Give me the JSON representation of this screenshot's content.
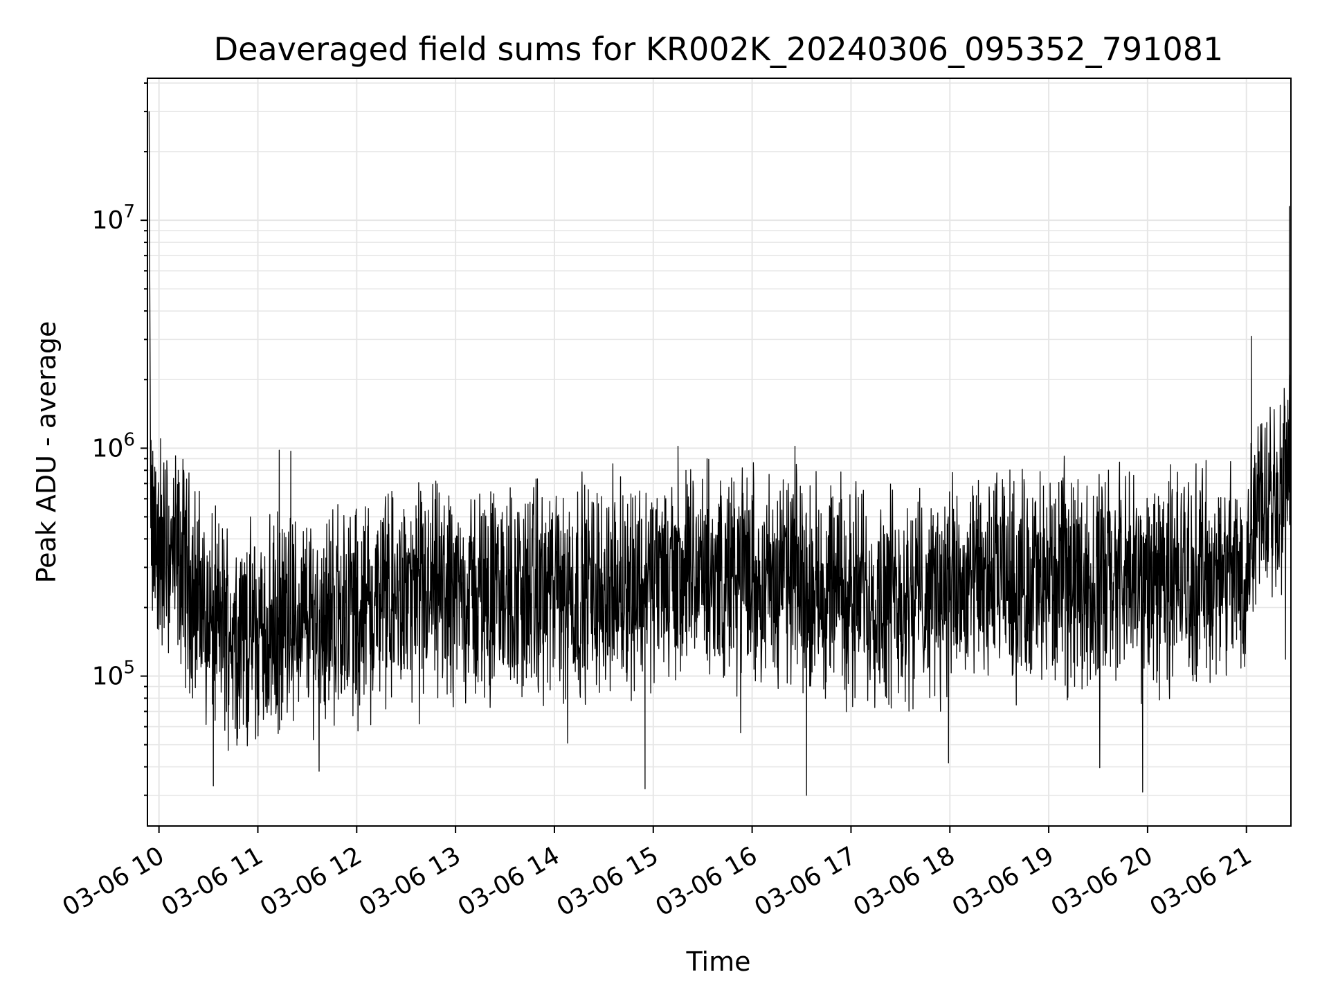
{
  "chart_data": {
    "type": "line",
    "title": "Deaveraged field sums for KR002K_20240306_095352_791081",
    "xlabel": "Time",
    "ylabel": "Peak ADU - average",
    "x_start": "2024-03-06T09:53:52",
    "x_end": "2024-03-06T21:27:00",
    "xlim": [
      "2024-03-06T09:53:00",
      "2024-03-06T21:27:00"
    ],
    "ylim": [
      22000,
      42000000
    ],
    "y_scale": "log",
    "grid": true,
    "line_color": "#000000",
    "grid_color": "#e6e6e6",
    "xtick_values": [
      "2024-03-06T10:00:00",
      "2024-03-06T11:00:00",
      "2024-03-06T12:00:00",
      "2024-03-06T13:00:00",
      "2024-03-06T14:00:00",
      "2024-03-06T15:00:00",
      "2024-03-06T16:00:00",
      "2024-03-06T17:00:00",
      "2024-03-06T18:00:00",
      "2024-03-06T19:00:00",
      "2024-03-06T20:00:00",
      "2024-03-06T21:00:00"
    ],
    "xtick_labels": [
      "03-06 10",
      "03-06 11",
      "03-06 12",
      "03-06 13",
      "03-06 14",
      "03-06 15",
      "03-06 16",
      "03-06 17",
      "03-06 18",
      "03-06 19",
      "03-06 20",
      "03-06 21"
    ],
    "ytick_values": [
      100000,
      1000000,
      10000000
    ],
    "ytick_labels": [
      {
        "base": "10",
        "exp": "5"
      },
      {
        "base": "10",
        "exp": "6"
      },
      {
        "base": "10",
        "exp": "7"
      }
    ],
    "series": [
      {
        "values_note": "",
        "envelope": [
          {
            "t": "2024-03-06T09:53:52",
            "y": 30000000
          },
          {
            "t": "2024-03-06T09:55:00",
            "y": 400000
          },
          {
            "t": "2024-03-06T10:00:00",
            "y": 350000
          },
          {
            "t": "2024-03-06T10:15:00",
            "y": 300000
          },
          {
            "t": "2024-03-06T10:30:00",
            "y": 180000
          },
          {
            "t": "2024-03-06T10:45:00",
            "y": 160000
          },
          {
            "t": "2024-03-06T11:00:00",
            "y": 150000
          },
          {
            "t": "2024-03-06T11:15:00",
            "y": 170000
          },
          {
            "t": "2024-03-06T11:30:00",
            "y": 180000
          },
          {
            "t": "2024-03-06T11:45:00",
            "y": 190000
          },
          {
            "t": "2024-03-06T12:00:00",
            "y": 200000
          },
          {
            "t": "2024-03-06T12:30:00",
            "y": 220000
          },
          {
            "t": "2024-03-06T13:00:00",
            "y": 230000
          },
          {
            "t": "2024-03-06T13:30:00",
            "y": 230000
          },
          {
            "t": "2024-03-06T14:00:00",
            "y": 230000
          },
          {
            "t": "2024-03-06T14:30:00",
            "y": 250000
          },
          {
            "t": "2024-03-06T15:00:00",
            "y": 270000
          },
          {
            "t": "2024-03-06T15:30:00",
            "y": 280000
          },
          {
            "t": "2024-03-06T16:00:00",
            "y": 280000
          },
          {
            "t": "2024-03-06T16:30:00",
            "y": 260000
          },
          {
            "t": "2024-03-06T17:00:00",
            "y": 240000
          },
          {
            "t": "2024-03-06T17:30:00",
            "y": 230000
          },
          {
            "t": "2024-03-06T18:00:00",
            "y": 240000
          },
          {
            "t": "2024-03-06T18:30:00",
            "y": 260000
          },
          {
            "t": "2024-03-06T19:00:00",
            "y": 270000
          },
          {
            "t": "2024-03-06T19:30:00",
            "y": 270000
          },
          {
            "t": "2024-03-06T20:00:00",
            "y": 270000
          },
          {
            "t": "2024-03-06T20:30:00",
            "y": 280000
          },
          {
            "t": "2024-03-06T21:00:00",
            "y": 280000
          },
          {
            "t": "2024-03-06T21:05:00",
            "y": 650000
          },
          {
            "t": "2024-03-06T21:27:00",
            "y": 700000
          }
        ],
        "spikes": [
          {
            "t": "2024-03-06T09:54:00",
            "y": 30000000
          },
          {
            "t": "2024-03-06T10:01:00",
            "y": 1100000
          },
          {
            "t": "2024-03-06T10:15:00",
            "y": 800000
          },
          {
            "t": "2024-03-06T11:13:00",
            "y": 980000
          },
          {
            "t": "2024-03-06T11:20:00",
            "y": 970000
          },
          {
            "t": "2024-03-06T15:15:00",
            "y": 1020000
          },
          {
            "t": "2024-03-06T16:26:00",
            "y": 1020000
          },
          {
            "t": "2024-03-06T21:03:00",
            "y": 3100000
          },
          {
            "t": "2024-03-06T21:26:00",
            "y": 11500000
          },
          {
            "t": "2024-03-06T10:33:00",
            "y": 33000
          },
          {
            "t": "2024-03-06T16:33:00",
            "y": 30000
          },
          {
            "t": "2024-03-06T19:57:00",
            "y": 31000
          },
          {
            "t": "2024-03-06T14:55:00",
            "y": 32000
          }
        ]
      }
    ]
  }
}
